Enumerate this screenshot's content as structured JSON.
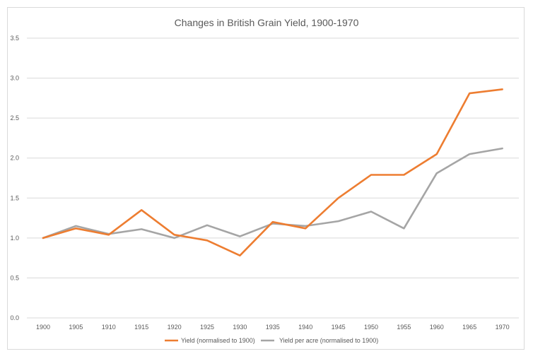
{
  "chart_data": {
    "type": "line",
    "title": "Changes in British Grain Yield, 1900-1970",
    "xlabel": "",
    "ylabel": "",
    "categories": [
      "1900",
      "1905",
      "1910",
      "1915",
      "1920",
      "1925",
      "1930",
      "1935",
      "1940",
      "1945",
      "1950",
      "1955",
      "1960",
      "1965",
      "1970"
    ],
    "ylim": [
      0,
      3.5
    ],
    "yticks": [
      "0.0",
      "0.5",
      "1.0",
      "1.5",
      "2.0",
      "2.5",
      "3.0",
      "3.5"
    ],
    "grid": true,
    "legend_position": "bottom",
    "series": [
      {
        "name": "Yield (normalised to 1900)",
        "color": "#ED7D31",
        "values": [
          1.0,
          1.12,
          1.04,
          1.35,
          1.04,
          0.97,
          0.78,
          1.2,
          1.12,
          1.5,
          1.79,
          1.79,
          2.05,
          2.81,
          2.86
        ]
      },
      {
        "name": "Yield per acre (normalised to 1900)",
        "color": "#A5A5A5",
        "values": [
          1.0,
          1.15,
          1.05,
          1.11,
          1.0,
          1.16,
          1.02,
          1.18,
          1.15,
          1.21,
          1.33,
          1.12,
          1.81,
          2.05,
          2.12
        ]
      }
    ]
  }
}
